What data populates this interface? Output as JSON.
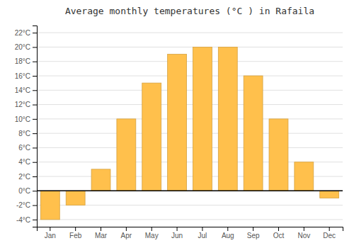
{
  "chart_data": {
    "type": "bar",
    "title": "Average monthly temperatures (°C ) in Rafaila",
    "categories": [
      "Jan",
      "Feb",
      "Mar",
      "Apr",
      "May",
      "Jun",
      "Jul",
      "Aug",
      "Sep",
      "Oct",
      "Nov",
      "Dec"
    ],
    "values": [
      -4,
      -2,
      3,
      10,
      15,
      19,
      20,
      20,
      16,
      10,
      4,
      -1
    ],
    "color": "#FFC04C",
    "ylim": [
      -5,
      23
    ],
    "yticks": [
      {
        "value": -4,
        "label": "-4°C"
      },
      {
        "value": -2,
        "label": "-2°C"
      },
      {
        "value": 0,
        "label": "0°C"
      },
      {
        "value": 2,
        "label": "2°C"
      },
      {
        "value": 4,
        "label": "4°C"
      },
      {
        "value": 6,
        "label": "6°C"
      },
      {
        "value": 8,
        "label": "8°C"
      },
      {
        "value": 10,
        "label": "10°C"
      },
      {
        "value": 12,
        "label": "12°C"
      },
      {
        "value": 14,
        "label": "14°C"
      },
      {
        "value": 16,
        "label": "16°C"
      },
      {
        "value": 18,
        "label": "18°C"
      },
      {
        "value": 20,
        "label": "20°C"
      },
      {
        "value": 22,
        "label": "22°C"
      }
    ],
    "grid": true
  }
}
